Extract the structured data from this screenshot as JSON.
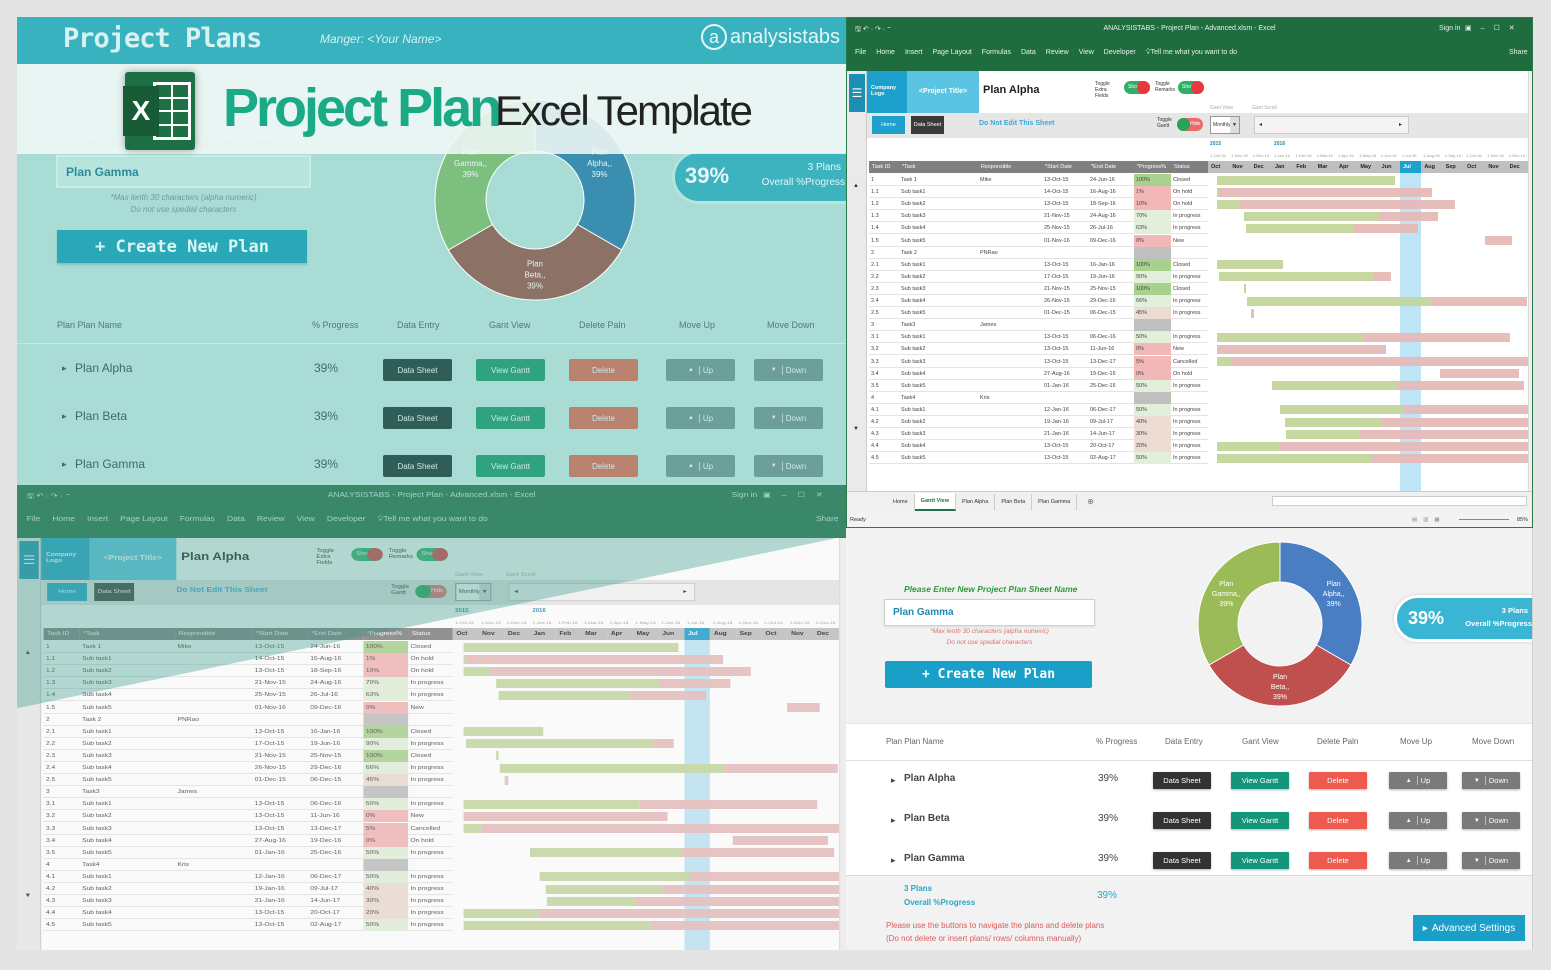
{
  "banner": {
    "app_name": "Project Plans",
    "manager": "Manger: <Your Name>",
    "logo_letter": "a",
    "logo_text": "analysistabs",
    "title_main": "Project Plan",
    "title_sub": "Excel Template",
    "excel_logo_letter": "X"
  },
  "dashboard": {
    "input_label": "Please Enter New Project Plan Sheet Name",
    "input_value": "Plan Gamma",
    "note1": "*Max lenth 30 characters (alpha numeric)",
    "note2": "Do not use spedial characters",
    "create_button": "+ Create New Plan",
    "progress_pct": "39%",
    "plans_count": "3 Plans",
    "overall_label": "Overall %Progress",
    "columns": [
      "Plan Plan Name",
      "% Progress",
      "Data Entry",
      "Gant View",
      "Delete Paln",
      "Move Up",
      "Move Down"
    ],
    "plans": [
      {
        "name": "Plan Alpha",
        "progress": "39%"
      },
      {
        "name": "Plan Beta",
        "progress": "39%"
      },
      {
        "name": "Plan Gamma",
        "progress": "39%"
      }
    ],
    "btn_data_sheet": "Data Sheet",
    "btn_view_gantt": "View Gantt",
    "btn_delete": "Delete",
    "btn_up": "Up",
    "btn_down": "Down",
    "footer_note1": "Please use the buttons to navigate the plans and delete plans",
    "footer_note2": "(Do not delete or insert plans/ rows/ columns manually)",
    "advanced_button": "Advanced Settings",
    "chart": {
      "type": "pie",
      "slices": [
        {
          "label": "Plan Alpha, 39%",
          "value": 33.33,
          "color": "#4a7ec3"
        },
        {
          "label": "Plan Beta, 39%",
          "value": 33.33,
          "color": "#c0504d"
        },
        {
          "label": "Plan Gamma, 39%",
          "value": 33.33,
          "color": "#9bbb59"
        }
      ]
    },
    "chart_faded_colors": [
      "#3a8fb1",
      "#8b7166",
      "#7dbf7e"
    ]
  },
  "excel": {
    "window_title": "ANALYSISTABS - Project Plan - Advanced.xlsm - Excel",
    "sign_in": "Sign in",
    "ribbon_tabs": [
      "File",
      "Home",
      "Insert",
      "Page Layout",
      "Formulas",
      "Data",
      "Review",
      "View",
      "Developer"
    ],
    "tell_me": "Tell me what you want to do",
    "share": "Share",
    "company_logo": "Company Logo",
    "project_title": "<Project Title>",
    "sheet_title": "Plan Alpha",
    "toggle_extra": "Toggle Extra Fields",
    "toggle_remarks": "Toggle Remarks",
    "show": "Show",
    "hide": "Hide",
    "toggle_gantt": "Toggle Gantt",
    "home_button": "Home",
    "data_sheet_button": "Data Sheet",
    "do_not_edit": "Do Not Edit This Sheet",
    "gantt_view_label": "Gant View",
    "gantt_scroll_label": "Gant Scroll",
    "view_mode": "Monthly",
    "years": [
      "2015",
      "2016"
    ],
    "month_dates": [
      "1-Oct-15",
      "1-Nov-15",
      "1-Dec-15",
      "1-Jan-16",
      "1-Feb-16",
      "1-Mar-16",
      "1-Apr-16",
      "1-May-16",
      "1-Jun-16",
      "1-Jul-16",
      "1-Aug-16",
      "1-Sep-16",
      "1-Oct-16",
      "1-Nov-16",
      "1-Dec-16"
    ],
    "months": [
      "Oct",
      "Nov",
      "Dec",
      "Jan",
      "Feb",
      "Mar",
      "Apr",
      "May",
      "Jun",
      "Jul",
      "Aug",
      "Sep",
      "Oct",
      "Nov",
      "Dec"
    ],
    "current_month": "Jul",
    "columns": [
      "Task ID",
      "*Task",
      "Responsible",
      "*Start Date",
      "*End Date",
      "*Progress%",
      "Status"
    ],
    "tasks": [
      [
        "1",
        "Task 1",
        "Mike",
        "13-Oct-15",
        "24-Jun-16",
        "100%",
        "Closed"
      ],
      [
        "1.1",
        "Sub task1",
        "",
        "14-Oct-15",
        "16-Aug-16",
        "1%",
        "On hold"
      ],
      [
        "1.2",
        "Sub task2",
        "",
        "13-Oct-15",
        "18-Sep-16",
        "10%",
        "On hold"
      ],
      [
        "1.3",
        "Sub task3",
        "",
        "21-Nov-15",
        "24-Aug-16",
        "70%",
        "In progress"
      ],
      [
        "1.4",
        "Sub task4",
        "",
        "25-Nov-15",
        "26-Jul-16",
        "63%",
        "In progress"
      ],
      [
        "1.5",
        "Sub task5",
        "",
        "01-Nov-16",
        "09-Dec-16",
        "0%",
        "New"
      ],
      [
        "2",
        "Task 2",
        "PNRao",
        "",
        "",
        "",
        ""
      ],
      [
        "2.1",
        "Sub task1",
        "",
        "13-Oct-15",
        "16-Jan-16",
        "100%",
        "Closed"
      ],
      [
        "2.2",
        "Sub task2",
        "",
        "17-Oct-15",
        "19-Jun-16",
        "90%",
        "In progress"
      ],
      [
        "2.3",
        "Sub task3",
        "",
        "21-Nov-15",
        "25-Nov-15",
        "100%",
        "Closed"
      ],
      [
        "2.4",
        "Sub task4",
        "",
        "26-Nov-15",
        "29-Dec-16",
        "66%",
        "In progress"
      ],
      [
        "2.5",
        "Sub task5",
        "",
        "01-Dec-15",
        "06-Dec-15",
        "45%",
        "In progress"
      ],
      [
        "3",
        "Task3",
        "James",
        "",
        "",
        "",
        ""
      ],
      [
        "3.1",
        "Sub task1",
        "",
        "13-Oct-15",
        "06-Dec-16",
        "50%",
        "In progress"
      ],
      [
        "3.2",
        "Sub task2",
        "",
        "13-Oct-15",
        "11-Jun-16",
        "0%",
        "New"
      ],
      [
        "3.3",
        "Sub task3",
        "",
        "13-Oct-15",
        "13-Dec-17",
        "5%",
        "Cancelled"
      ],
      [
        "3.4",
        "Sub task4",
        "",
        "27-Aug-16",
        "19-Dec-16",
        "0%",
        "On hold"
      ],
      [
        "3.5",
        "Sub task5",
        "",
        "01-Jan-16",
        "25-Dec-16",
        "50%",
        "In progress"
      ],
      [
        "4",
        "Task4",
        "Kris",
        "",
        "",
        "",
        ""
      ],
      [
        "4.1",
        "Sub task1",
        "",
        "12-Jan-16",
        "06-Dec-17",
        "50%",
        "In progress"
      ],
      [
        "4.2",
        "Sub task2",
        "",
        "19-Jan-16",
        "09-Jul-17",
        "40%",
        "In progress"
      ],
      [
        "4.3",
        "Sub task3",
        "",
        "21-Jan-16",
        "14-Jun-17",
        "30%",
        "In progress"
      ],
      [
        "4.4",
        "Sub task4",
        "",
        "13-Oct-15",
        "20-Oct-17",
        "20%",
        "In progress"
      ],
      [
        "4.5",
        "Sub task5",
        "",
        "13-Oct-15",
        "02-Aug-17",
        "50%",
        "In progress"
      ]
    ],
    "sheet_tabs": [
      "Home",
      "Gantt View",
      "Plan Alpha",
      "Plan Beta",
      "Plan Gamma"
    ],
    "active_sheet_tab": "Gantt View",
    "status": "Ready",
    "zoom": "85%",
    "colors": {
      "ribbon": "#1f6d3f",
      "bar_done": "#c3d69b",
      "bar_remaining": "#e6b9b8",
      "today": "#bde5f5"
    }
  }
}
